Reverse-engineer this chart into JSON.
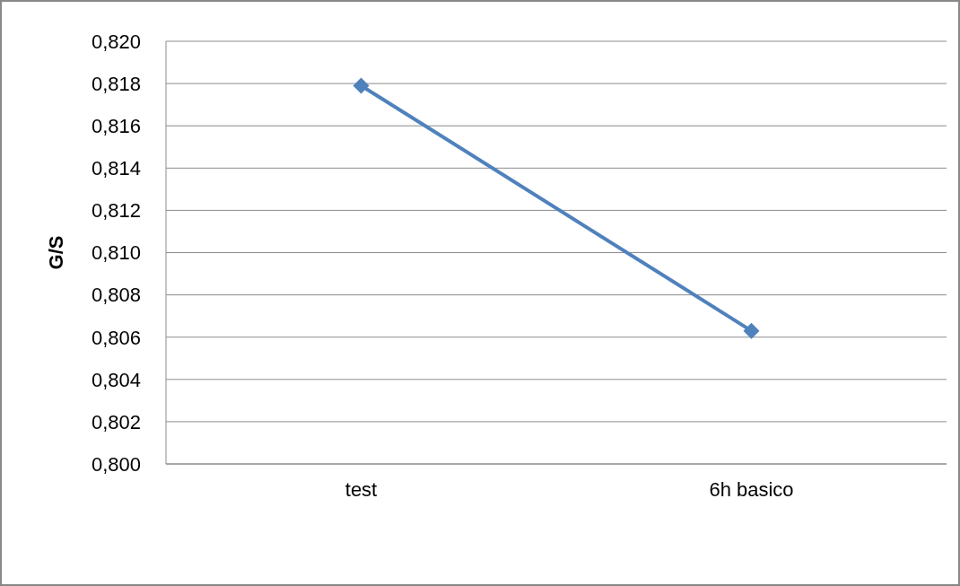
{
  "chart_data": {
    "type": "line",
    "ylabel": "G/S",
    "categories": [
      "test",
      "6h basico"
    ],
    "series": [
      {
        "color": "#4f81bd",
        "values": [
          0.8179,
          0.8063
        ]
      }
    ],
    "ylim": [
      0.8,
      0.82
    ],
    "yticks": [
      {
        "value": 0.8,
        "label": "0,800"
      },
      {
        "value": 0.802,
        "label": "0,802"
      },
      {
        "value": 0.804,
        "label": "0,804"
      },
      {
        "value": 0.806,
        "label": "0,806"
      },
      {
        "value": 0.808,
        "label": "0,808"
      },
      {
        "value": 0.81,
        "label": "0,810"
      },
      {
        "value": 0.812,
        "label": "0,812"
      },
      {
        "value": 0.814,
        "label": "0,814"
      },
      {
        "value": 0.816,
        "label": "0,816"
      },
      {
        "value": 0.818,
        "label": "0,818"
      },
      {
        "value": 0.82,
        "label": "0,820"
      }
    ],
    "grid": "y",
    "marker": "diamond",
    "line_style": "solid"
  }
}
